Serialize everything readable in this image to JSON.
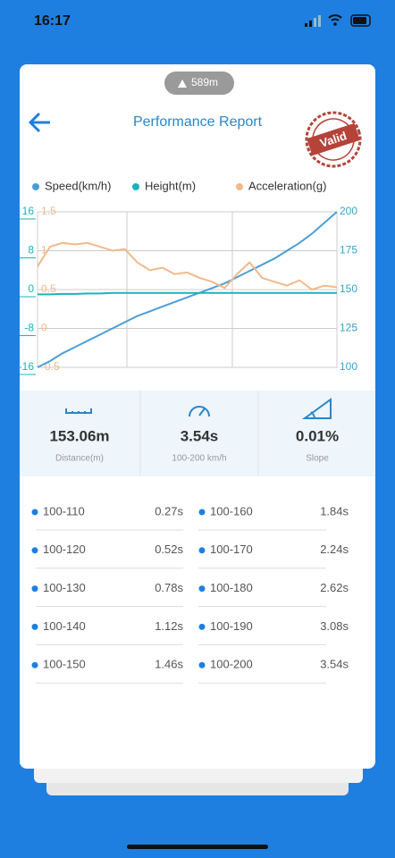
{
  "status_bar": {
    "time": "16:17"
  },
  "badge": "589m",
  "header": {
    "title": "Performance Report",
    "stamp": "Valid"
  },
  "chart_data": {
    "type": "line",
    "series": [
      {
        "name": "Speed(km/h)",
        "color": "#4a9fd8",
        "axis": "y2",
        "values": [
          100,
          104,
          109,
          113,
          117,
          121,
          125,
          129,
          133,
          136,
          139,
          142,
          145,
          148,
          151,
          154,
          158,
          162,
          166,
          170,
          175,
          180,
          186,
          193,
          200
        ]
      },
      {
        "name": "Height(m)",
        "color": "#1bb3b8",
        "values": [
          -1,
          -1,
          -0.9,
          -0.9,
          -0.8,
          -0.8,
          -0.7,
          -0.7,
          -0.7,
          -0.7,
          -0.7,
          -0.7,
          -0.7,
          -0.7,
          -0.7,
          -0.7,
          -0.7,
          -0.7,
          -0.7,
          -0.7,
          -0.7,
          -0.7,
          -0.7,
          -0.7,
          -0.7
        ]
      },
      {
        "name": "Acceleration(g)",
        "color": "#f0b98a",
        "axis": "y3",
        "values": [
          0.8,
          1.05,
          1.1,
          1.08,
          1.1,
          1.05,
          1.0,
          1.02,
          0.85,
          0.75,
          0.78,
          0.7,
          0.72,
          0.65,
          0.6,
          0.52,
          0.7,
          0.85,
          0.65,
          0.6,
          0.55,
          0.62,
          0.5,
          0.55,
          0.53
        ]
      }
    ],
    "ylim": [
      -16,
      16
    ],
    "yticks": [
      16,
      8,
      0,
      -8,
      -16
    ],
    "y3lim": [
      -0.5,
      1.5
    ],
    "y3ticks": [
      1.5,
      1,
      0.5,
      0,
      -0.5
    ],
    "y2lim": [
      100,
      200
    ],
    "y2ticks": [
      200,
      175,
      150,
      125,
      100
    ],
    "grid": true
  },
  "stats": [
    {
      "value": "153.06m",
      "label": "Distance(m)"
    },
    {
      "value": "3.54s",
      "label": "100-200 km/h"
    },
    {
      "value": "0.01%",
      "label": "Slope"
    }
  ],
  "splits": [
    {
      "name": "100-110",
      "time": "0.27s"
    },
    {
      "name": "100-120",
      "time": "0.52s"
    },
    {
      "name": "100-130",
      "time": "0.78s"
    },
    {
      "name": "100-140",
      "time": "1.12s"
    },
    {
      "name": "100-150",
      "time": "1.46s"
    },
    {
      "name": "100-160",
      "time": "1.84s"
    },
    {
      "name": "100-170",
      "time": "2.24s"
    },
    {
      "name": "100-180",
      "time": "2.62s"
    },
    {
      "name": "100-190",
      "time": "3.08s"
    },
    {
      "name": "100-200",
      "time": "3.54s"
    }
  ]
}
